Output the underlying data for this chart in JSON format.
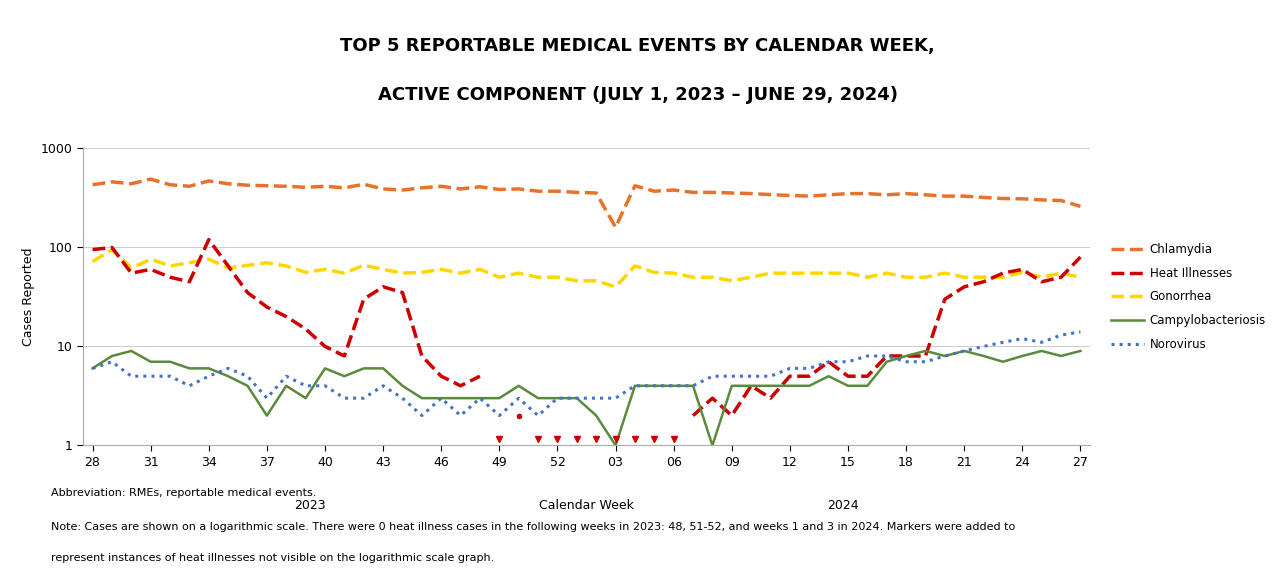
{
  "title_line1": "TOP 5 REPORTABLE MEDICAL EVENTS BY CALENDAR WEEK,",
  "title_line2": "ACTIVE COMPONENT (JULY 1, 2023 – JUNE 29, 2024)",
  "xlabel": "Calendar Week",
  "ylabel": "Cases Reported",
  "title_bg": "#e6e6f0",
  "plot_bg": "#ffffff",
  "fig_bg": "#ffffff",
  "xtick_labels": [
    "28",
    "31",
    "34",
    "37",
    "40",
    "43",
    "46",
    "49",
    "52",
    "03",
    "06",
    "09",
    "12",
    "15",
    "18",
    "21",
    "24",
    "27"
  ],
  "ylim": [
    1,
    1000
  ],
  "yticks": [
    1,
    10,
    100,
    1000
  ],
  "note1": "Abbreviation: RMEs, reportable medical events.",
  "note2": "Note: Cases are shown on a logarithmic scale. There were 0 heat illness cases in the following weeks in 2023: 48, 51-52, and weeks 1 and 3 in 2024. Markers were added to",
  "note3": "represent instances of heat illnesses not visible on the logarithmic scale graph.",
  "chlamydia": {
    "label": "Chlamydia",
    "color": "#E8722A",
    "linestyle": "--",
    "linewidth": 2.5,
    "values": [
      430,
      460,
      440,
      490,
      430,
      415,
      470,
      440,
      425,
      420,
      415,
      405,
      415,
      400,
      435,
      390,
      380,
      400,
      415,
      390,
      410,
      385,
      390,
      370,
      370,
      360,
      355,
      160,
      420,
      370,
      380,
      360,
      360,
      355,
      350,
      342,
      335,
      330,
      340,
      350,
      350,
      340,
      350,
      340,
      330,
      330,
      320,
      312,
      310,
      302,
      298,
      260
    ]
  },
  "gonorrhea": {
    "label": "Gonorrhea",
    "color": "#FFD700",
    "linestyle": "--",
    "linewidth": 2.5,
    "values": [
      72,
      95,
      62,
      76,
      65,
      70,
      76,
      62,
      66,
      70,
      65,
      56,
      60,
      55,
      66,
      60,
      55,
      56,
      60,
      55,
      60,
      50,
      55,
      50,
      50,
      46,
      46,
      40,
      65,
      56,
      55,
      50,
      50,
      46,
      50,
      55,
      55,
      55,
      55,
      55,
      50,
      55,
      50,
      50,
      55,
      50,
      50,
      50,
      56,
      50,
      55,
      50
    ]
  },
  "heat_illnesses": {
    "label": "Heat Illnesses",
    "color": "#CC0000",
    "linestyle": "--",
    "linewidth": 2.5,
    "values": [
      95,
      100,
      55,
      60,
      50,
      45,
      120,
      65,
      35,
      25,
      20,
      15,
      10,
      8,
      30,
      40,
      35,
      8,
      5,
      4,
      5,
      null,
      2,
      null,
      null,
      null,
      null,
      null,
      null,
      null,
      null,
      2,
      3,
      2,
      4,
      3,
      5,
      5,
      7,
      5,
      5,
      8,
      8,
      8,
      30,
      40,
      45,
      55,
      60,
      45,
      50,
      80
    ]
  },
  "campylobacteriosis": {
    "label": "Campylobacteriosis",
    "color": "#5B8A3C",
    "linestyle": "-",
    "linewidth": 1.8,
    "values": [
      6,
      8,
      9,
      7,
      7,
      6,
      6,
      5,
      4,
      2,
      4,
      3,
      6,
      5,
      6,
      6,
      4,
      3,
      3,
      3,
      3,
      3,
      4,
      3,
      3,
      3,
      2,
      1,
      4,
      4,
      4,
      4,
      1,
      4,
      4,
      4,
      4,
      4,
      5,
      4,
      4,
      7,
      8,
      9,
      8,
      9,
      8,
      7,
      8,
      9,
      8,
      9
    ]
  },
  "norovirus": {
    "label": "Norovirus",
    "color": "#4472C4",
    "linestyle": ":",
    "linewidth": 2.2,
    "values": [
      6,
      7,
      5,
      5,
      5,
      4,
      5,
      6,
      5,
      3,
      5,
      4,
      4,
      3,
      3,
      4,
      3,
      2,
      3,
      2,
      3,
      2,
      3,
      2,
      3,
      3,
      3,
      3,
      4,
      4,
      4,
      4,
      5,
      5,
      5,
      5,
      6,
      6,
      7,
      7,
      8,
      8,
      7,
      7,
      8,
      9,
      10,
      11,
      12,
      11,
      13,
      14
    ]
  }
}
